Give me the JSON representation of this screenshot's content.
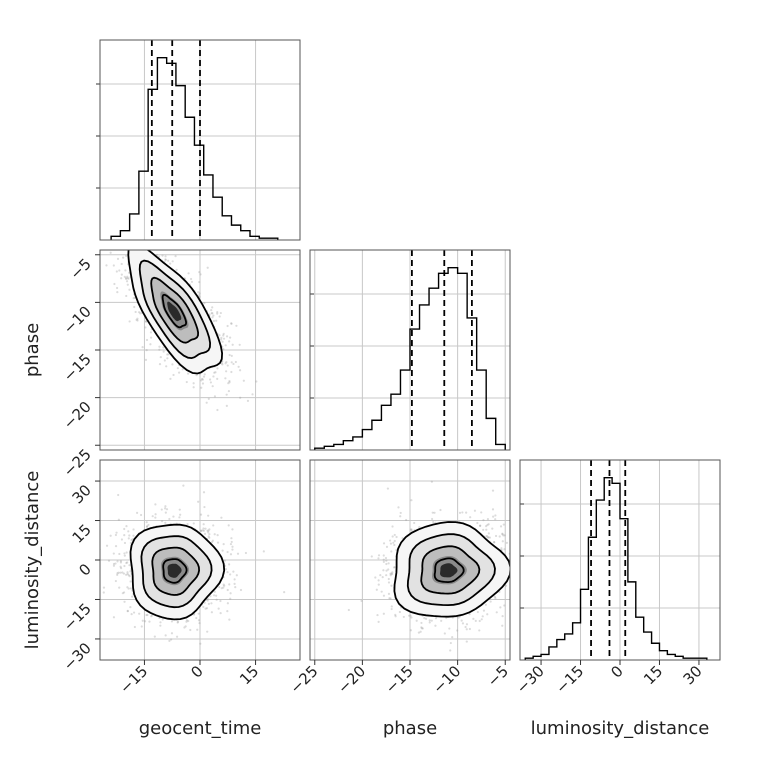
{
  "chart_data": {
    "type": "corner",
    "parameters": [
      "geocent_time",
      "phase",
      "luminosity_distance"
    ],
    "xlabels": [
      "geocent_time",
      "phase",
      "luminosity_distance"
    ],
    "ylabels": [
      "",
      "phase",
      "luminosity_distance"
    ],
    "ranges": {
      "geocent_time": [
        -27,
        27
      ],
      "phase": [
        -25.5,
        -4.5
      ],
      "luminosity_distance": [
        -38,
        38
      ]
    },
    "ticks": {
      "geocent_time": [
        -15,
        0,
        15
      ],
      "phase": [
        -25,
        -20,
        -15,
        -10,
        -5
      ],
      "luminosity_distance": [
        -30,
        -15,
        0,
        15,
        30
      ]
    },
    "tick_labels": {
      "geocent_time": [
        "−15",
        "0",
        "15"
      ],
      "phase": [
        "−25",
        "−20",
        "−15",
        "−10",
        "−5"
      ],
      "luminosity_distance": [
        "−30",
        "−15",
        "0",
        "15",
        "30"
      ]
    },
    "quantiles": {
      "geocent_time": [
        -13.0,
        -7.5,
        0.0
      ],
      "phase": [
        -14.8,
        -11.4,
        -8.5
      ],
      "luminosity_distance": [
        -11.0,
        -4.0,
        2.0
      ]
    },
    "histograms": {
      "geocent_time": {
        "edges": [
          -24,
          -21.5,
          -19,
          -16.5,
          -14,
          -11.5,
          -9,
          -6.5,
          -4,
          -1.5,
          1,
          3.5,
          6,
          8.5,
          11,
          13.5,
          16,
          18.5,
          21
        ],
        "counts": [
          0.02,
          0.05,
          0.14,
          0.37,
          0.81,
          0.98,
          0.95,
          0.83,
          0.66,
          0.51,
          0.35,
          0.23,
          0.13,
          0.08,
          0.05,
          0.02,
          0.01,
          0.01
        ]
      },
      "phase": {
        "edges": [
          -25,
          -24,
          -23,
          -22,
          -21,
          -20,
          -19,
          -18,
          -17,
          -16,
          -15,
          -14,
          -13,
          -12,
          -11,
          -10,
          -9,
          -8,
          -7,
          -6,
          -5
        ],
        "counts": [
          0.01,
          0.02,
          0.03,
          0.05,
          0.07,
          0.11,
          0.16,
          0.24,
          0.3,
          0.43,
          0.65,
          0.78,
          0.87,
          0.95,
          0.98,
          0.95,
          0.71,
          0.43,
          0.17,
          0.03
        ]
      },
      "luminosity_distance": {
        "edges": [
          -36,
          -33,
          -30,
          -27,
          -24,
          -21,
          -18,
          -15,
          -12,
          -9,
          -6,
          -3,
          0,
          3,
          6,
          9,
          12,
          15,
          18,
          21,
          24,
          27,
          30,
          33
        ],
        "counts": [
          0.01,
          0.02,
          0.03,
          0.07,
          0.11,
          0.14,
          0.2,
          0.38,
          0.66,
          0.86,
          0.98,
          0.95,
          0.76,
          0.42,
          0.23,
          0.15,
          0.09,
          0.05,
          0.03,
          0.02,
          0.01,
          0.01,
          0.01
        ]
      }
    },
    "pairs": [
      {
        "x": "geocent_time",
        "y": "phase",
        "mean": [
          -7,
          -11
        ],
        "sd": [
          6.2,
          3.3
        ],
        "rho": -0.72
      },
      {
        "x": "geocent_time",
        "y": "luminosity_distance",
        "mean": [
          -7,
          -4
        ],
        "sd": [
          6.2,
          9.0
        ],
        "rho": 0.0
      },
      {
        "x": "phase",
        "y": "luminosity_distance",
        "mean": [
          -11,
          -4
        ],
        "sd": [
          3.0,
          9.0
        ],
        "rho": 0.05
      }
    ],
    "contour_levels": [
      0.5,
      1.0,
      1.5,
      2.0
    ],
    "grid": true,
    "hist_type": "step",
    "quantile_style": "dashed"
  }
}
